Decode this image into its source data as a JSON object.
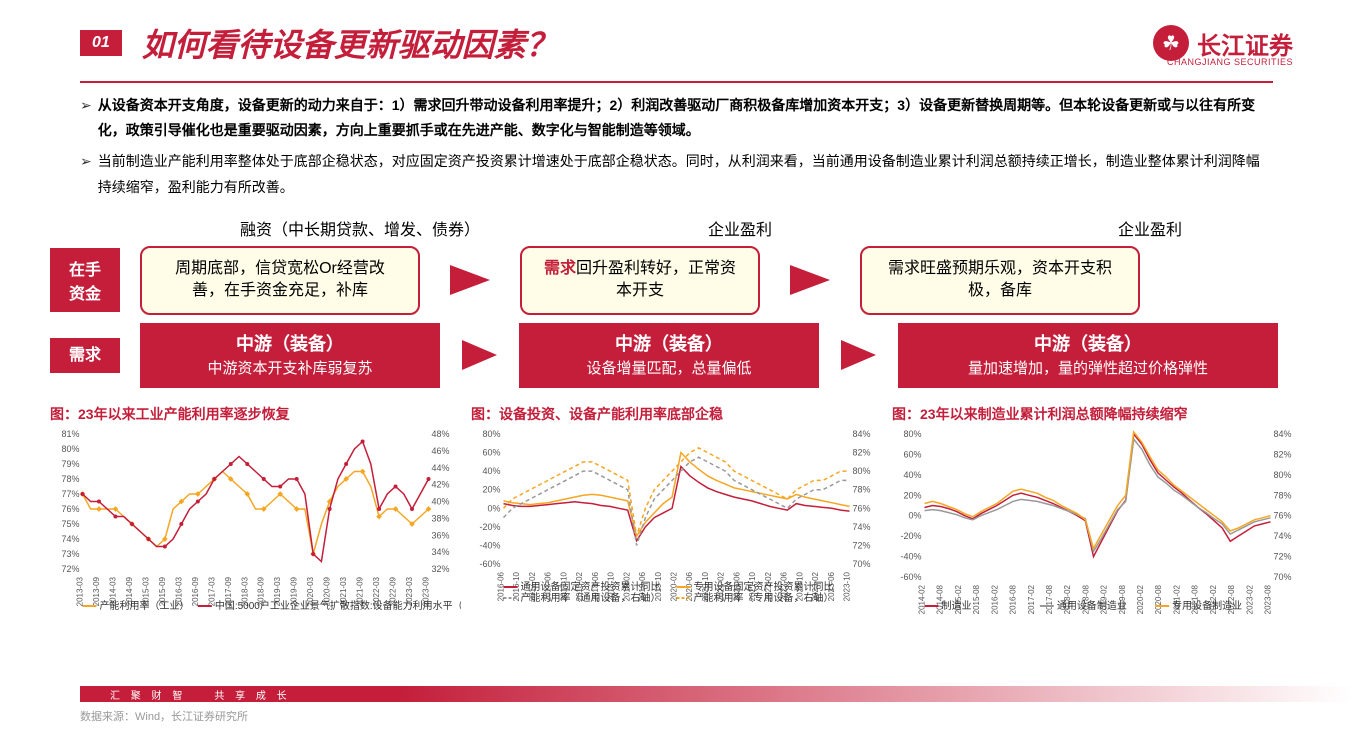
{
  "header": {
    "section_num": "01",
    "title": "如何看待设备更新驱动因素？",
    "logo_text": "长江证券",
    "logo_sub": "CHANGJIANG SECURITIES"
  },
  "bullets": [
    {
      "text": "从设备资本开支角度，设备更新的动力来自于：1）需求回升带动设备利用率提升；2）利润改善驱动厂商积极备库增加资本开支；3）设备更新替换周期等。但本轮设备更新或与以往有所变化，政策引导催化也是重要驱动因素，方向上重要抓手或在先进产能、数字化与智能制造等领域。",
      "bold": true
    },
    {
      "text": "当前制造业产能利用率整体处于底部企稳状态，对应固定资产投资累计增速处于底部企稳状态。同时，从利润来看，当前通用设备制造业累计利润总额持续正增长，制造业整体累计利润降幅持续缩窄，盈利能力有所改善。",
      "bold": false
    }
  ],
  "flow": {
    "top_labels": [
      "融资（中长期贷款、增发、债券）",
      "企业盈利",
      "企业盈利"
    ],
    "row1_label": "在手资金",
    "row1_boxes": [
      "周期底部，信贷宽松Or经营改善，在手资金充足，补库",
      "|需求|回升盈利转好，正常资本开支",
      "需求旺盛预期乐观，资本开支积极，备库"
    ],
    "row2_label": "需求",
    "row2_boxes": [
      {
        "title": "中游（装备）",
        "sub": "中游资本开支补库弱复苏"
      },
      {
        "title": "中游（装备）",
        "sub": "设备增量匹配，总量偏低"
      },
      {
        "title": "中游（装备）",
        "sub": "量加速增加，量的弹性超过价格弹性"
      }
    ]
  },
  "charts": [
    {
      "title": "图：23年以来工业产能利用率逐步恢复",
      "y_left": {
        "min": 72,
        "max": 81,
        "ticks": [
          72,
          73,
          74,
          75,
          76,
          77,
          78,
          79,
          80,
          81
        ],
        "suffix": "%"
      },
      "y_right": {
        "min": 32,
        "max": 48,
        "ticks": [
          32,
          34,
          36,
          38,
          40,
          42,
          44,
          46,
          48
        ],
        "suffix": "%"
      },
      "x_labels": [
        "2013-03",
        "2013-09",
        "2014-03",
        "2014-09",
        "2015-03",
        "2015-09",
        "2016-03",
        "2016-09",
        "2017-03",
        "2017-09",
        "2018-03",
        "2018-09",
        "2019-03",
        "2019-09",
        "2020-03",
        "2020-09",
        "2021-03",
        "2021-09",
        "2022-03",
        "2022-09",
        "2023-03",
        "2023-09"
      ],
      "series": [
        {
          "name": "产能利用率（工业）",
          "color": "#f5a623",
          "marker": "diamond",
          "data": [
            77,
            76,
            76,
            76,
            76,
            75.5,
            75,
            74.5,
            74,
            73.5,
            74,
            76,
            76.5,
            77,
            77,
            77.5,
            78,
            78.5,
            78,
            77.5,
            77,
            76,
            76,
            76.5,
            77,
            76.5,
            76,
            76,
            73,
            75,
            76.5,
            77.5,
            78,
            78.5,
            78.5,
            77.5,
            75.5,
            76,
            76,
            75.5,
            75,
            75.5,
            76
          ]
        },
        {
          "name": "中国:5000户工业企业景气扩散指数:设备能力利用水平（右轴）",
          "color": "#c41e3a",
          "marker": "circle",
          "data": [
            77,
            76.5,
            76.5,
            76,
            75.5,
            75.5,
            75,
            74.5,
            74,
            73.5,
            73.5,
            74,
            75,
            76,
            76.5,
            77,
            78,
            78.5,
            79,
            79.5,
            79,
            78.5,
            78,
            77.5,
            77.5,
            78,
            78,
            77,
            73,
            72.5,
            76,
            78,
            79,
            80,
            80.5,
            79,
            76,
            77,
            77.5,
            77,
            76,
            77,
            78
          ]
        }
      ],
      "legend": [
        "产能利用率（工业）",
        "中国:5000户工业企业景气扩散指数:设备能力利用水平（右轴）"
      ]
    },
    {
      "title": "图：设备投资、设备产能利用率底部企稳",
      "y_left": {
        "min": -60,
        "max": 80,
        "ticks": [
          -60,
          -40,
          -20,
          0,
          20,
          40,
          60,
          80
        ],
        "suffix": "%"
      },
      "y_right": {
        "min": 70,
        "max": 84,
        "ticks": [
          70,
          72,
          74,
          76,
          78,
          80,
          82,
          84
        ],
        "suffix": "%"
      },
      "x_labels": [
        "2016-06",
        "2016-10",
        "2017-02",
        "2017-06",
        "2017-10",
        "2018-02",
        "2018-06",
        "2018-10",
        "2019-02",
        "2019-06",
        "2019-10",
        "2020-02",
        "2020-06",
        "2020-10",
        "2021-02",
        "2021-06",
        "2021-10",
        "2022-02",
        "2022-06",
        "2022-10",
        "2023-02",
        "2023-06",
        "2023-10"
      ],
      "series": [
        {
          "name": "通用设备固定资产投资累计同比",
          "color": "#c41e3a",
          "style": "solid",
          "data": [
            5,
            3,
            2,
            2,
            3,
            4,
            5,
            6,
            7,
            6,
            5,
            3,
            2,
            0,
            -2,
            -35,
            -20,
            -10,
            -5,
            0,
            45,
            35,
            28,
            22,
            18,
            15,
            12,
            10,
            8,
            5,
            2,
            0,
            -2,
            5,
            3,
            2,
            1,
            0,
            -2,
            -3
          ]
        },
        {
          "name": "专用设备固定资产投资累计同比",
          "color": "#f5a623",
          "style": "solid",
          "data": [
            8,
            6,
            5,
            4,
            5,
            6,
            8,
            10,
            12,
            14,
            15,
            14,
            12,
            10,
            8,
            -30,
            -15,
            -5,
            5,
            12,
            60,
            50,
            42,
            35,
            30,
            26,
            22,
            20,
            18,
            16,
            14,
            12,
            10,
            15,
            12,
            10,
            8,
            6,
            4,
            2
          ]
        },
        {
          "name": "产能利用率（通用设备，右轴）",
          "color": "#999",
          "style": "dash",
          "data": [
            75,
            76,
            76.5,
            77,
            77.5,
            78,
            78.5,
            79,
            79.5,
            80,
            80,
            79.5,
            79,
            78.5,
            78,
            72,
            75,
            77,
            78,
            79,
            80,
            81,
            81.5,
            81,
            80.5,
            80,
            79,
            78.5,
            78,
            77.5,
            77,
            76.5,
            76,
            77,
            77.5,
            78,
            78,
            78.5,
            79,
            79
          ]
        },
        {
          "name": "产能利用率（专用设备，右轴）",
          "color": "#f5a623",
          "style": "dash",
          "data": [
            76,
            77,
            77.5,
            78,
            78.5,
            79,
            79.5,
            80,
            80.5,
            81,
            81,
            80.5,
            80,
            79.5,
            79,
            73,
            76,
            78,
            79,
            80,
            81,
            82,
            82.5,
            82,
            81.5,
            81,
            80,
            79.5,
            79,
            78.5,
            78,
            77.5,
            77,
            78,
            78.5,
            79,
            79,
            79.5,
            80,
            80
          ]
        }
      ],
      "legend": [
        "通用设备固定资产投资累计同比",
        "专用设备固定资产投资累计同比",
        "产能利用率（通用设备，右轴）",
        "产能利用率（专用设备，右轴）"
      ]
    },
    {
      "title": "图：23年以来制造业累计利润总额降幅持续缩窄",
      "y_left": {
        "min": -60,
        "max": 80,
        "ticks": [
          -60,
          -40,
          -20,
          0,
          20,
          40,
          60,
          80
        ],
        "suffix": "%"
      },
      "y_right": {
        "min": 70,
        "max": 84,
        "ticks": [
          70,
          72,
          74,
          76,
          78,
          80,
          82,
          84
        ],
        "suffix": "%"
      },
      "x_labels": [
        "2014-02",
        "2014-08",
        "2015-02",
        "2015-08",
        "2016-02",
        "2016-08",
        "2017-02",
        "2017-08",
        "2018-02",
        "2018-08",
        "2019-02",
        "2019-08",
        "2020-02",
        "2020-08",
        "2021-02",
        "2021-08",
        "2022-02",
        "2022-08",
        "2023-02",
        "2023-08"
      ],
      "series": [
        {
          "name": "制造业",
          "color": "#c41e3a",
          "data": [
            8,
            10,
            9,
            7,
            4,
            0,
            -3,
            2,
            6,
            10,
            15,
            20,
            22,
            20,
            18,
            15,
            12,
            8,
            4,
            0,
            -5,
            -40,
            -25,
            -10,
            5,
            15,
            80,
            70,
            55,
            42,
            35,
            28,
            22,
            15,
            8,
            2,
            -5,
            -12,
            -25,
            -20,
            -15,
            -10,
            -8,
            -6
          ]
        },
        {
          "name": "通用设备制造业",
          "color": "#999",
          "data": [
            5,
            6,
            5,
            3,
            1,
            -2,
            -4,
            0,
            3,
            6,
            10,
            14,
            16,
            15,
            14,
            12,
            10,
            7,
            4,
            1,
            -3,
            -35,
            -22,
            -8,
            6,
            14,
            75,
            65,
            50,
            38,
            32,
            25,
            20,
            14,
            8,
            3,
            -3,
            -8,
            -18,
            -14,
            -10,
            -6,
            -4,
            -2
          ]
        },
        {
          "name": "专用设备制造业",
          "color": "#f5a623",
          "data": [
            12,
            14,
            12,
            9,
            6,
            2,
            -1,
            4,
            8,
            12,
            18,
            24,
            26,
            24,
            22,
            18,
            15,
            10,
            6,
            2,
            -4,
            -32,
            -18,
            -4,
            10,
            20,
            82,
            72,
            58,
            45,
            38,
            30,
            24,
            18,
            12,
            6,
            0,
            -6,
            -15,
            -12,
            -8,
            -4,
            -2,
            0
          ]
        }
      ],
      "legend": [
        "制造业",
        "通用设备制造业",
        "专用设备制造业"
      ]
    }
  ],
  "footer": {
    "tagline": "汇 聚 财 智　　共 享 成 长",
    "source": "数据来源：Wind，长江证券研究所"
  },
  "colors": {
    "primary": "#c41e3a",
    "orange": "#f5a623",
    "gray": "#999999",
    "yellow_bg": "#fffde7"
  }
}
